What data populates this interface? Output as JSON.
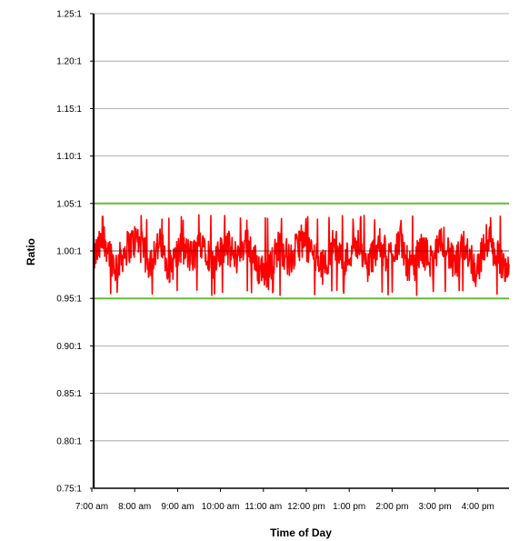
{
  "chart_data": {
    "type": "line",
    "title": "",
    "xlabel": "Time of Day",
    "ylabel": "Ratio",
    "x_range": [
      "7:00 am",
      "4:30 pm"
    ],
    "ylim": [
      0.75,
      1.25
    ],
    "y_ticks": [
      0.75,
      0.8,
      0.85,
      0.9,
      0.95,
      1.0,
      1.05,
      1.1,
      1.15,
      1.2,
      1.25
    ],
    "y_tick_labels": [
      "0.75:1",
      "0.80:1",
      "0.85:1",
      "0.90:1",
      "0.95:1",
      "1.00:1",
      "1.05:1",
      "1.10:1",
      "1.15:1",
      "1.20:1",
      "1.25:1"
    ],
    "x_tick_labels": [
      "7:00 am",
      "8:00 am",
      "9:00 am",
      "10:00 am",
      "11:00 am",
      "12:00 pm",
      "1:00 pm",
      "2:00 pm",
      "3:00 pm",
      "4:00 pm"
    ],
    "grid": true,
    "reference_lines": [
      {
        "y": 1.05,
        "color": "#66bb33"
      },
      {
        "y": 0.95,
        "color": "#66bb33"
      }
    ],
    "series": [
      {
        "color": "#ff0000",
        "range": [
          0.953,
          1.038
        ],
        "mean": 1.0,
        "x": [
          "7:00 am",
          "7:15 am",
          "7:30 am",
          "7:45 am",
          "8:00 am",
          "8:15 am",
          "8:30 am",
          "8:45 am",
          "9:00 am",
          "9:15 am",
          "9:30 am",
          "9:45 am",
          "10:00 am",
          "10:15 am",
          "10:30 am",
          "10:45 am",
          "11:00 am",
          "11:15 am",
          "11:30 am",
          "11:45 am",
          "12:00 pm",
          "12:15 pm",
          "12:30 pm",
          "12:45 pm",
          "1:00 pm",
          "1:15 pm",
          "1:30 pm",
          "1:45 pm",
          "2:00 pm",
          "2:15 pm",
          "2:30 pm",
          "2:45 pm",
          "3:00 pm",
          "3:15 pm",
          "3:30 pm",
          "3:45 pm",
          "4:00 pm",
          "4:15 pm",
          "4:30 pm"
        ],
        "values": [
          0.99,
          1.03,
          0.97,
          1.01,
          1.03,
          0.98,
          1.02,
          0.97,
          1.01,
          0.99,
          1.03,
          0.97,
          1.02,
          0.99,
          1.03,
          0.97,
          0.96,
          1.02,
          0.98,
          1.03,
          1.0,
          0.97,
          1.02,
          0.98,
          1.03,
          0.97,
          1.02,
          0.99,
          1.03,
          0.96,
          1.01,
          0.98,
          1.03,
          0.97,
          1.02,
          0.96,
          1.03,
          0.99,
          0.97
        ]
      }
    ]
  }
}
